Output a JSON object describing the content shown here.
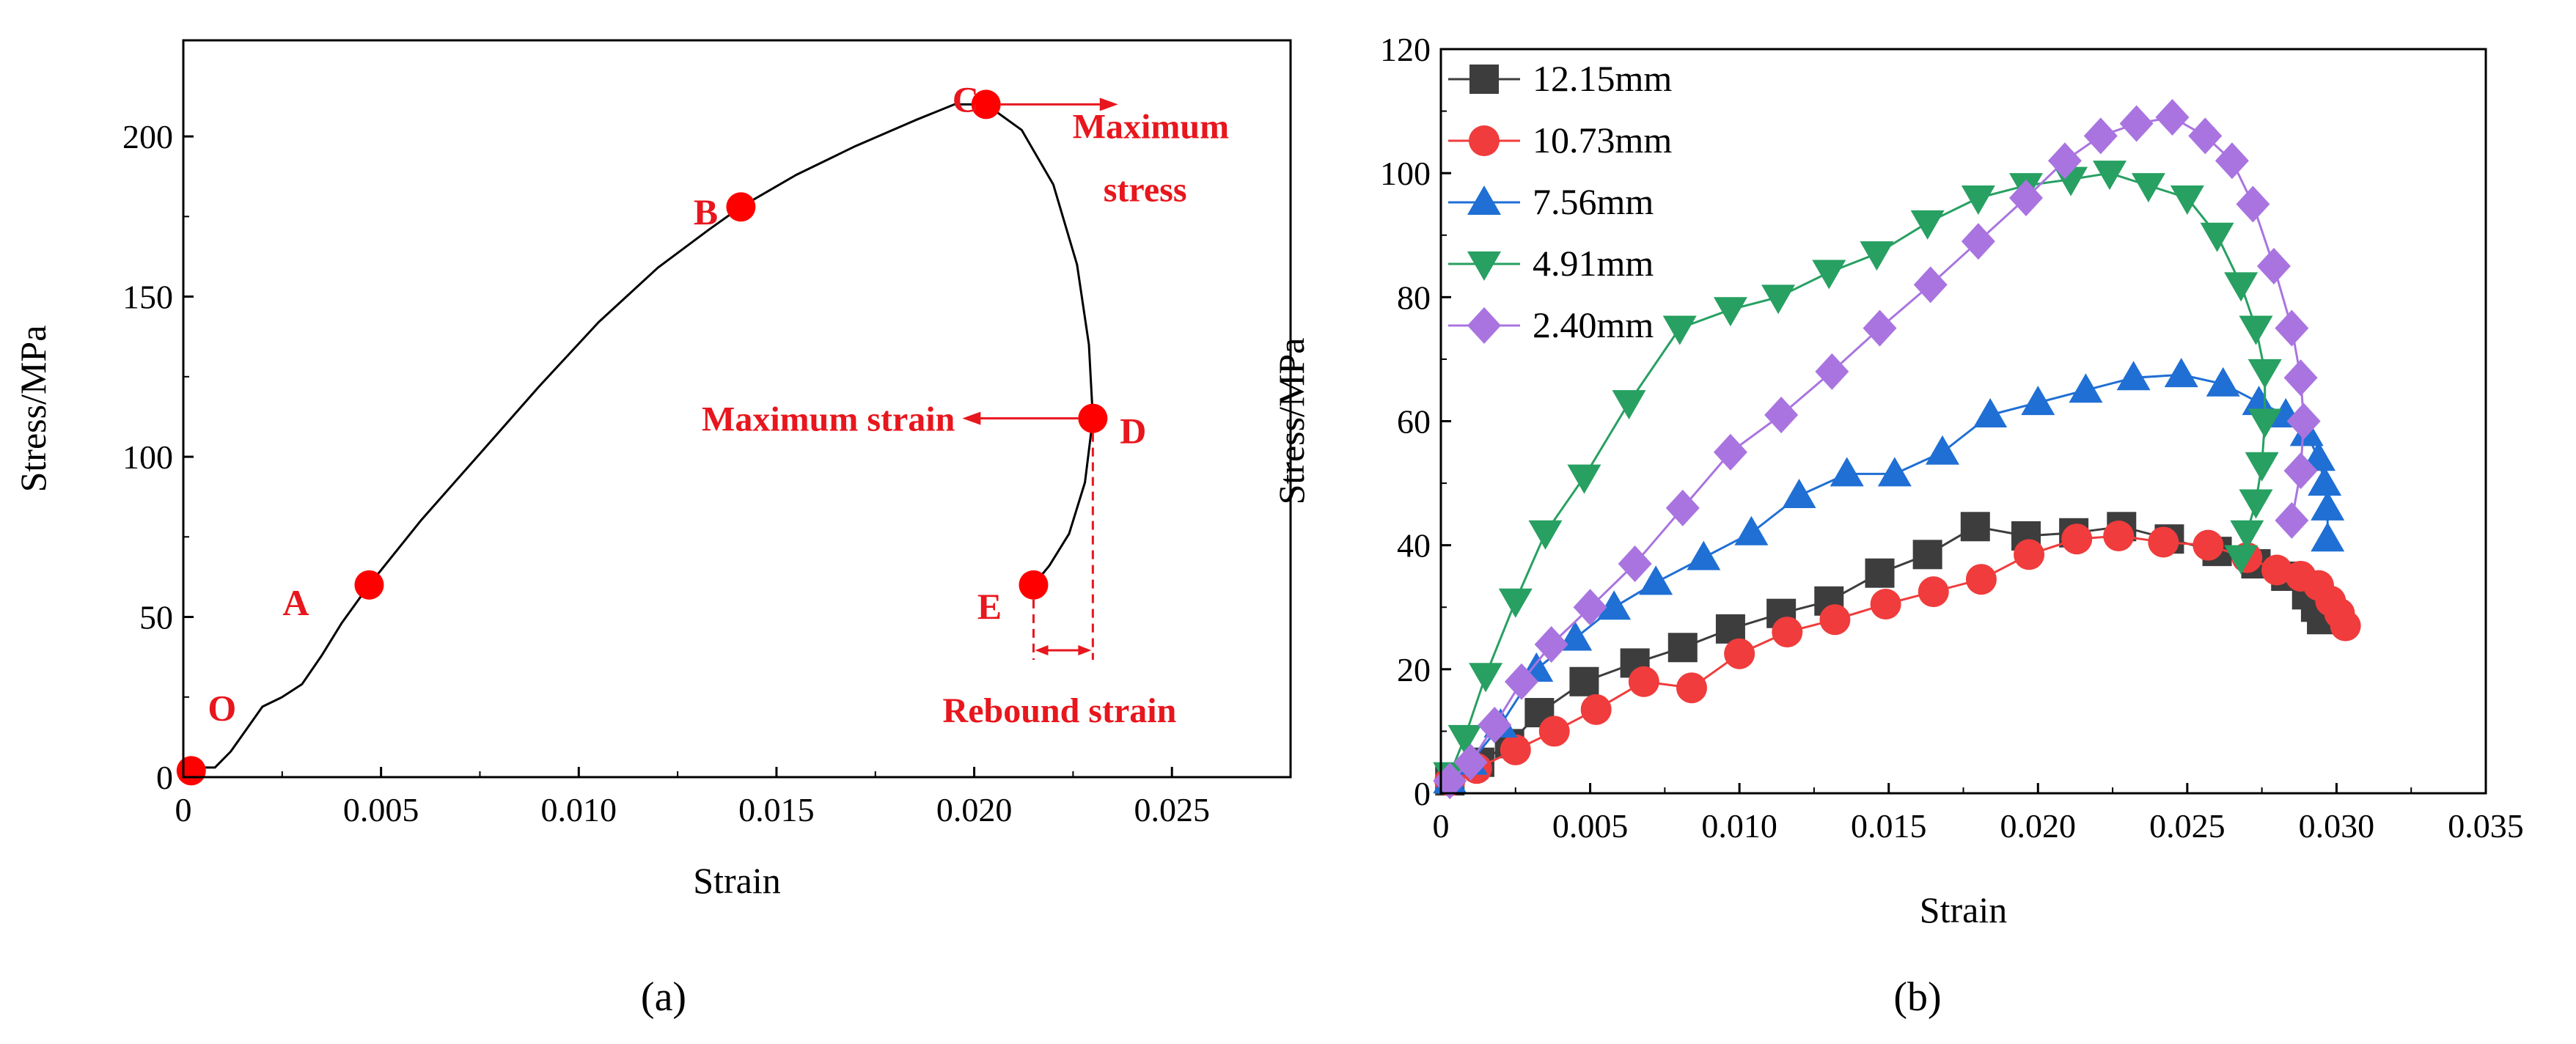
{
  "chart_data": [
    {
      "type": "line",
      "panel": "a",
      "caption": "(a)",
      "xlabel": "Strain",
      "ylabel": "Stress/MPa",
      "xlim": [
        0,
        0.028
      ],
      "ylim": [
        0,
        230
      ],
      "x_ticks": [
        0,
        0.005,
        0.01,
        0.015,
        0.02,
        0.025
      ],
      "x_tick_labels": [
        "0",
        "0.005",
        "0.010",
        "0.015",
        "0.020",
        "0.025"
      ],
      "y_ticks": [
        0,
        50,
        100,
        150,
        200
      ],
      "y_tick_labels": [
        "0",
        "50",
        "100",
        "150",
        "200"
      ],
      "series": [
        {
          "name": "stress-strain curve",
          "color": "#000000",
          "x": [
            0,
            0.0005,
            0.0008,
            0.0012,
            0.0016,
            0.002,
            0.0025,
            0.003,
            0.0035,
            0.004,
            0.0047,
            0.006,
            0.0075,
            0.009,
            0.0105,
            0.012,
            0.0133,
            0.0141,
            0.0155,
            0.017,
            0.0185,
            0.0195,
            0.0203,
            0.0212,
            0.022,
            0.0226,
            0.0229,
            0.023,
            0.0228,
            0.0224,
            0.0219,
            0.0215
          ],
          "y": [
            2,
            3,
            3,
            8,
            15,
            22,
            25,
            29,
            38,
            48,
            60,
            80,
            101,
            122,
            142,
            159,
            171,
            178,
            188,
            197,
            205,
            210,
            210,
            202,
            185,
            160,
            135,
            112,
            92,
            76,
            66,
            60
          ]
        }
      ],
      "points": [
        {
          "label": "O",
          "x": 0.0002,
          "y": 2
        },
        {
          "label": "A",
          "x": 0.0047,
          "y": 60
        },
        {
          "label": "B",
          "x": 0.0141,
          "y": 178
        },
        {
          "label": "C",
          "x": 0.0203,
          "y": 210
        },
        {
          "label": "D",
          "x": 0.023,
          "y": 112
        },
        {
          "label": "E",
          "x": 0.0215,
          "y": 60
        }
      ],
      "point_color": "#ff0000",
      "annotations": {
        "max_stress_line1": "Maximum",
        "max_stress_line2": "stress",
        "max_strain": "Maximum strain",
        "rebound_strain": "Rebound strain"
      },
      "annotation_color": "#e8161d"
    },
    {
      "type": "line",
      "panel": "b",
      "caption": "(b)",
      "xlabel": "Strain",
      "ylabel": "Stress/MPa",
      "xlim": [
        0,
        0.035
      ],
      "ylim": [
        0,
        120
      ],
      "x_ticks": [
        0,
        0.005,
        0.01,
        0.015,
        0.02,
        0.025,
        0.03,
        0.035
      ],
      "x_tick_labels": [
        "0",
        "0.005",
        "0.010",
        "0.015",
        "0.020",
        "0.025",
        "0.030",
        "0.035"
      ],
      "y_ticks": [
        0,
        20,
        40,
        60,
        80,
        100,
        120
      ],
      "y_tick_labels": [
        "0",
        "20",
        "40",
        "60",
        "80",
        "100",
        "120"
      ],
      "legend_position": "top-left",
      "series": [
        {
          "name": "12.15mm",
          "color": "#3d3d3d",
          "marker": "square",
          "x": [
            0.0003,
            0.0013,
            0.0023,
            0.0033,
            0.0048,
            0.0065,
            0.0081,
            0.0097,
            0.0114,
            0.013,
            0.0147,
            0.0163,
            0.0179,
            0.0196,
            0.0212,
            0.0228,
            0.0244,
            0.026,
            0.0273,
            0.0283,
            0.029,
            0.0293,
            0.0295
          ],
          "y": [
            2,
            5,
            8,
            13,
            18,
            21,
            23.5,
            26.5,
            29,
            31,
            35.5,
            38.5,
            43,
            41.5,
            42,
            43,
            41,
            39,
            37,
            35,
            32,
            30,
            28
          ]
        },
        {
          "name": "10.73mm",
          "color": "#f03c3c",
          "marker": "circle",
          "x": [
            0.0003,
            0.0012,
            0.0025,
            0.0038,
            0.0052,
            0.0068,
            0.0084,
            0.01,
            0.0116,
            0.0132,
            0.0149,
            0.0165,
            0.0181,
            0.0197,
            0.0213,
            0.0227,
            0.0242,
            0.0257,
            0.027,
            0.028,
            0.0288,
            0.0294,
            0.0298,
            0.0301,
            0.0303
          ],
          "y": [
            2,
            4,
            7,
            10,
            13.5,
            18,
            17,
            22.5,
            26,
            28,
            30.5,
            32.5,
            34.5,
            38.5,
            41,
            41.5,
            40.5,
            40,
            38,
            36,
            35,
            33.5,
            31,
            29,
            27
          ]
        },
        {
          "name": "7.56mm",
          "color": "#1f6fd4",
          "marker": "triangle-up",
          "x": [
            0.0003,
            0.001,
            0.002,
            0.0032,
            0.0045,
            0.0058,
            0.0072,
            0.0088,
            0.0104,
            0.012,
            0.0136,
            0.0152,
            0.0168,
            0.0184,
            0.02,
            0.0216,
            0.0232,
            0.0248,
            0.0262,
            0.0274,
            0.0283,
            0.029,
            0.0294,
            0.0296,
            0.0297,
            0.0297
          ],
          "y": [
            2,
            5,
            11,
            20,
            25,
            30,
            34,
            38,
            42,
            48,
            51.5,
            51.5,
            55,
            61,
            63,
            65,
            67,
            67.5,
            66,
            63,
            61,
            58,
            54,
            50,
            46,
            41
          ]
        },
        {
          "name": "4.91mm",
          "color": "#27a062",
          "marker": "triangle-down",
          "x": [
            0.0003,
            0.0008,
            0.0015,
            0.0025,
            0.0035,
            0.0048,
            0.0063,
            0.008,
            0.0097,
            0.0113,
            0.013,
            0.0146,
            0.0163,
            0.018,
            0.0196,
            0.0211,
            0.0224,
            0.0237,
            0.025,
            0.026,
            0.0268,
            0.0273,
            0.0276,
            0.0276,
            0.0275,
            0.0273,
            0.027,
            0.0268
          ],
          "y": [
            3,
            9,
            19,
            31,
            42,
            51,
            63,
            75,
            78,
            80,
            84,
            87,
            92,
            96,
            98,
            99,
            100,
            98,
            96,
            90,
            82,
            75,
            68,
            60,
            53,
            47,
            42,
            38
          ]
        },
        {
          "name": "2.40mm",
          "color": "#a974e0",
          "marker": "diamond",
          "x": [
            0.0003,
            0.001,
            0.0018,
            0.0027,
            0.0037,
            0.005,
            0.0065,
            0.0081,
            0.0097,
            0.0114,
            0.0131,
            0.0147,
            0.0164,
            0.018,
            0.0196,
            0.0209,
            0.0221,
            0.0233,
            0.0245,
            0.0256,
            0.0265,
            0.0272,
            0.0279,
            0.0285,
            0.0288,
            0.0289,
            0.0288,
            0.0285
          ],
          "y": [
            2,
            5,
            11,
            18,
            24,
            30,
            37,
            46,
            55,
            61,
            68,
            75,
            82,
            89,
            96,
            102,
            106,
            108,
            109,
            106,
            102,
            95,
            85,
            75,
            67,
            60,
            52,
            44
          ]
        }
      ]
    }
  ]
}
